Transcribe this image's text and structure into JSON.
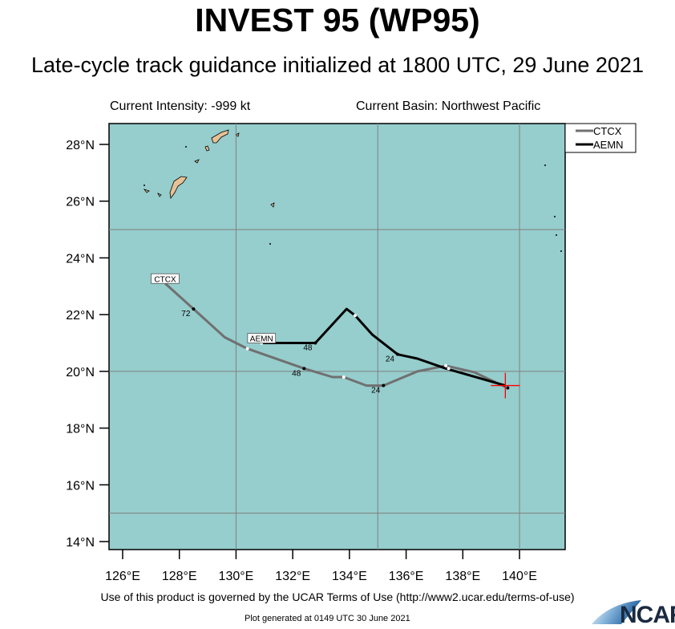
{
  "header": {
    "title": "INVEST 95 (WP95)",
    "subtitle": "Late-cycle track guidance initialized at 1800 UTC, 29 June 2021",
    "current_intensity": "Current Intensity: -999 kt",
    "current_basin": "Current Basin: Northwest Pacific"
  },
  "footer": {
    "terms": "Use of this product is governed by the UCAR Terms of Use (http://www2.ucar.edu/terms-of-use)",
    "generated": "Plot generated at 0149 UTC   30 June 2021",
    "logo_text": "NCAR"
  },
  "map": {
    "ocean_color": "#96cdcd",
    "land_color": "#e6c296",
    "lon_range": [
      125.5,
      142.1
    ],
    "lat_range": [
      13.7,
      28.75
    ],
    "lon_ticks": [
      "126°E",
      "128°E",
      "130°E",
      "132°E",
      "134°E",
      "136°E",
      "138°E",
      "140°E"
    ],
    "lon_tick_values": [
      126,
      128,
      130,
      132,
      134,
      136,
      138,
      140
    ],
    "lat_ticks": [
      "14°N",
      "16°N",
      "18°N",
      "20°N",
      "22°N",
      "24°N",
      "26°N",
      "28°N"
    ],
    "lat_tick_values": [
      14,
      16,
      18,
      20,
      22,
      24,
      26,
      28
    ],
    "gridlines_lon": [
      130,
      135,
      140
    ],
    "gridlines_lat": [
      15,
      20,
      25
    ],
    "current_position": {
      "lon": 139.5,
      "lat": 19.5,
      "marker_color": "#ff0000"
    }
  },
  "legend": {
    "entries": [
      {
        "name": "CTCX",
        "color": "#707070"
      },
      {
        "name": "AEMN",
        "color": "#000000"
      }
    ]
  },
  "tracks": [
    {
      "name": "CTCX",
      "color": "#707070",
      "points": [
        [
          139.5,
          19.45
        ],
        [
          138.4,
          19.97
        ],
        [
          137.4,
          20.2
        ],
        [
          136.4,
          20.0
        ],
        [
          135.2,
          19.5
        ],
        [
          134.6,
          19.5
        ],
        [
          133.8,
          19.8
        ],
        [
          133.4,
          19.8
        ],
        [
          132.4,
          20.1
        ],
        [
          130.4,
          20.8
        ],
        [
          129.6,
          21.2
        ],
        [
          128.5,
          22.2
        ],
        [
          127.5,
          23.1
        ]
      ],
      "hour_markers": [
        {
          "label": "24",
          "lon": 135.2,
          "lat": 19.5
        },
        {
          "label": "48",
          "lon": 132.4,
          "lat": 20.1
        },
        {
          "label": "72",
          "lon": 128.5,
          "lat": 22.2
        }
      ],
      "white_markers": [
        [
          137.4,
          20.2
        ],
        [
          133.8,
          19.8
        ],
        [
          130.4,
          20.8
        ]
      ]
    },
    {
      "name": "AEMN",
      "color": "#000000",
      "points": [
        [
          139.5,
          19.5
        ],
        [
          137.4,
          20.1
        ],
        [
          136.4,
          20.45
        ],
        [
          135.7,
          20.6
        ],
        [
          134.8,
          21.3
        ],
        [
          134.2,
          21.97
        ],
        [
          133.9,
          22.2
        ],
        [
          132.8,
          21.0
        ],
        [
          130.9,
          21.0
        ]
      ],
      "hour_markers": [
        {
          "label": "24",
          "lon": 135.7,
          "lat": 20.6
        },
        {
          "label": "48",
          "lon": 132.8,
          "lat": 21.0
        }
      ],
      "white_markers": [
        [
          137.5,
          20.1
        ],
        [
          134.2,
          21.97
        ],
        [
          130.9,
          21.0
        ]
      ]
    }
  ]
}
